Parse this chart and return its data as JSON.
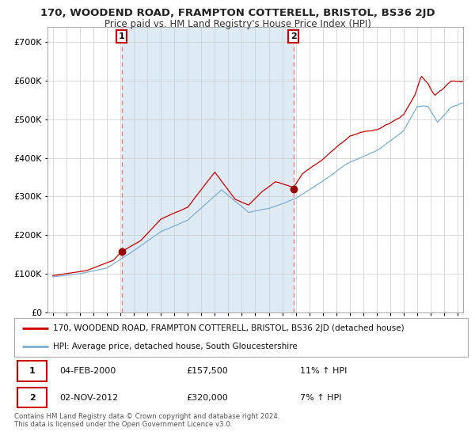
{
  "title1": "170, WOODEND ROAD, FRAMPTON COTTERELL, BRISTOL, BS36 2JD",
  "title2": "Price paid vs. HM Land Registry's House Price Index (HPI)",
  "legend_line1": "170, WOODEND ROAD, FRAMPTON COTTERELL, BRISTOL, BS36 2JD (detached house)",
  "legend_line2": "HPI: Average price, detached house, South Gloucestershire",
  "annotation1_date": "04-FEB-2000",
  "annotation1_price": "£157,500",
  "annotation1_hpi": "11% ↑ HPI",
  "annotation1_year": 2000.09,
  "annotation1_value": 157500,
  "annotation2_date": "02-NOV-2012",
  "annotation2_price": "£320,000",
  "annotation2_hpi": "7% ↑ HPI",
  "annotation2_year": 2012.83,
  "annotation2_value": 320000,
  "ylabel_values": [
    0,
    100000,
    200000,
    300000,
    400000,
    500000,
    600000,
    700000
  ],
  "ylim": [
    0,
    740000
  ],
  "xlim_start": 1994.6,
  "xlim_end": 2025.4,
  "red_line_color": "#cc0000",
  "blue_line_color": "#7aafd4",
  "shade_color": "#deeaf4",
  "grid_color": "#cccccc",
  "dashed_color": "#e88080",
  "marker_color": "#990000",
  "background_color": "#ffffff",
  "footer_text": "Contains HM Land Registry data © Crown copyright and database right 2024.\nThis data is licensed under the Open Government Licence v3.0."
}
